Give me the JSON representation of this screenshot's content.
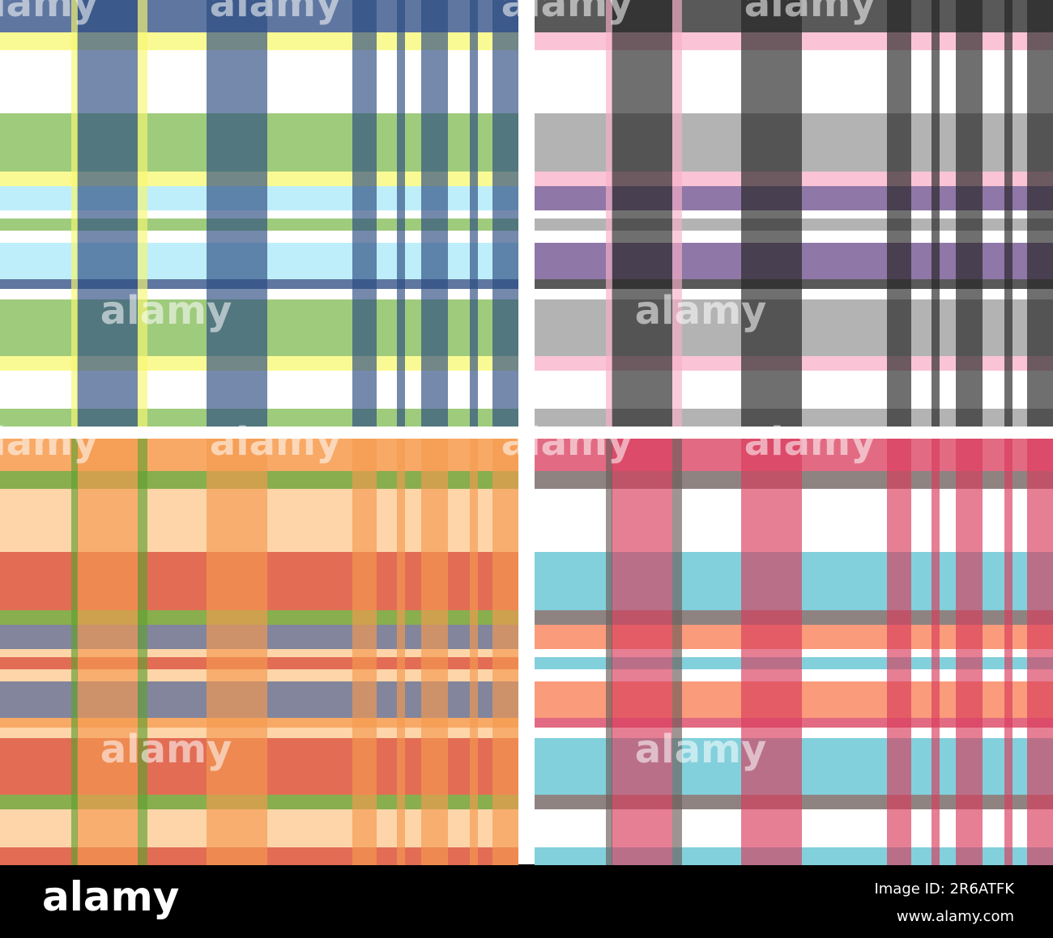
{
  "watermark": "alamy",
  "footer": {
    "logo": "alamy",
    "image_id": "Image ID: 2R6ATFK",
    "site": "www.alamy.com"
  }
}
